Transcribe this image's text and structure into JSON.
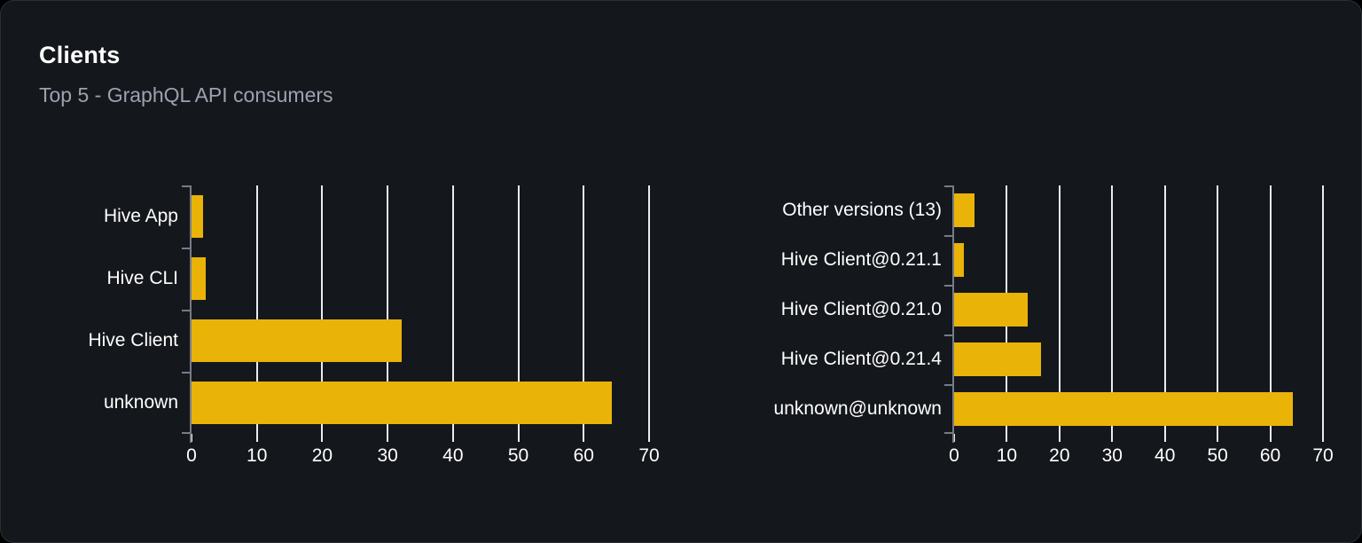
{
  "header": {
    "title": "Clients",
    "subtitle": "Top 5 - GraphQL API consumers"
  },
  "colors": {
    "background": "#14171c",
    "card_border": "#2b2f36",
    "bar": "#eab308",
    "gridline": "#e9edf2",
    "axis": "#767c86",
    "title": "#ffffff",
    "subtitle": "#9ca3af"
  },
  "chart_data": [
    {
      "type": "bar",
      "orientation": "horizontal",
      "name": "clients-by-name",
      "categories": [
        "Hive App",
        "Hive CLI",
        "Hive Client",
        "unknown"
      ],
      "values": [
        1.7,
        2.2,
        32.2,
        64.3
      ],
      "xlim": [
        0,
        70
      ],
      "xticks": [
        0,
        10,
        20,
        30,
        40,
        50,
        60,
        70
      ],
      "grid": true,
      "legend": "none",
      "bar_color": "#eab308"
    },
    {
      "type": "bar",
      "orientation": "horizontal",
      "name": "clients-by-version",
      "categories": [
        "Other versions (13)",
        "Hive Client@0.21.1",
        "Hive Client@0.21.0",
        "Hive Client@0.21.4",
        "unknown@unknown"
      ],
      "values": [
        3.9,
        1.9,
        13.9,
        16.5,
        64.3
      ],
      "xlim": [
        0,
        70
      ],
      "xticks": [
        0,
        10,
        20,
        30,
        40,
        50,
        60,
        70
      ],
      "grid": true,
      "legend": "none",
      "bar_color": "#eab308"
    }
  ]
}
